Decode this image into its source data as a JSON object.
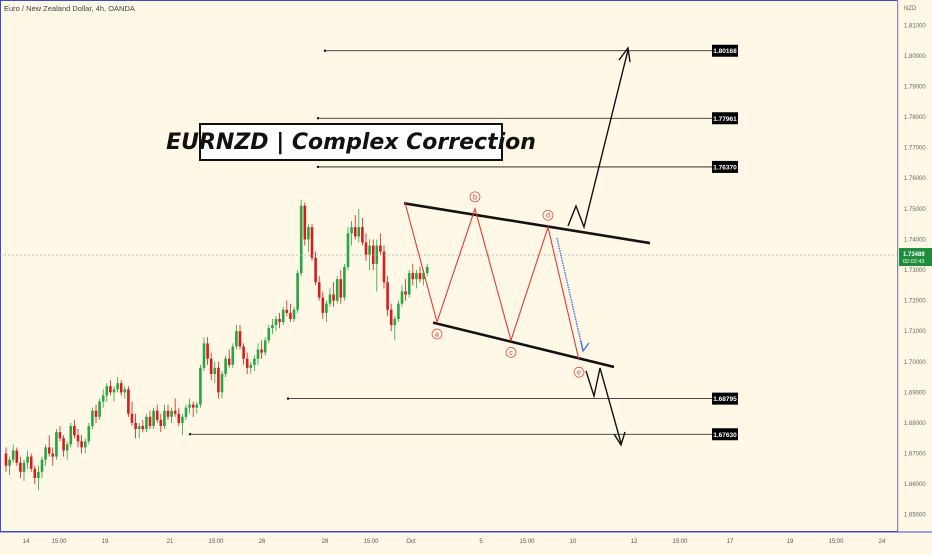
{
  "header": {
    "symbol_line": "Euro / New Zealand Dollar, 4h, OANDA"
  },
  "title_box": {
    "text": "EURNZD | Complex Correction"
  },
  "colors": {
    "background": "#FFF8E7",
    "bull": "#26A541",
    "bear": "#D81B1B",
    "wave": "#E53935",
    "projection_blue": "#3D6FE8",
    "line": "#111111"
  },
  "chart_data": {
    "type": "candlestick",
    "title": "EURNZD | Complex Correction",
    "symbol": "Euro / New Zealand Dollar, 4h, OANDA",
    "currency_label": "NZD",
    "ylim": [
      1.645,
      1.815
    ],
    "y_ticks": [
      "1.81000",
      "1.80000",
      "1.79000",
      "1.78000",
      "1.77000",
      "1.76000",
      "1.75000",
      "1.74000",
      "1.73000",
      "1.72000",
      "1.71000",
      "1.70000",
      "1.69000",
      "1.68000",
      "1.67000",
      "1.66000",
      "1.65000"
    ],
    "x_ticks": [
      "14",
      "15:00",
      "19",
      "21",
      "15:00",
      "26",
      "28",
      "15:00",
      "Oct",
      "5",
      "15:00",
      "10",
      "12",
      "15:00",
      "17",
      "19",
      "15:00",
      "24"
    ],
    "current_price": {
      "price": "1.73489",
      "countdown": "02:02:43"
    },
    "price_levels": [
      "1.80168",
      "1.77961",
      "1.76370",
      "1.68795",
      "1.67630"
    ],
    "wave_labels": [
      "a",
      "b",
      "c",
      "d",
      "e"
    ],
    "wave_points": [
      1.713,
      1.75,
      1.707,
      1.744,
      1.7005
    ],
    "channel": {
      "upper": [
        1.752,
        1.739
      ],
      "lower": [
        1.713,
        1.6985
      ]
    },
    "candles": [
      [
        1.67,
        1.672,
        1.664,
        1.666
      ],
      [
        1.666,
        1.669,
        1.663,
        1.668
      ],
      [
        1.668,
        1.673,
        1.667,
        1.671
      ],
      [
        1.671,
        1.672,
        1.666,
        1.667
      ],
      [
        1.667,
        1.669,
        1.662,
        1.664
      ],
      [
        1.664,
        1.668,
        1.661,
        1.667
      ],
      [
        1.667,
        1.671,
        1.665,
        1.669
      ],
      [
        1.669,
        1.67,
        1.664,
        1.665
      ],
      [
        1.665,
        1.666,
        1.66,
        1.662
      ],
      [
        1.662,
        1.666,
        1.658,
        1.664
      ],
      [
        1.664,
        1.669,
        1.662,
        1.668
      ],
      [
        1.668,
        1.673,
        1.666,
        1.672
      ],
      [
        1.672,
        1.676,
        1.669,
        1.67
      ],
      [
        1.67,
        1.672,
        1.666,
        1.669
      ],
      [
        1.669,
        1.678,
        1.668,
        1.677
      ],
      [
        1.677,
        1.679,
        1.674,
        1.675
      ],
      [
        1.675,
        1.676,
        1.669,
        1.671
      ],
      [
        1.671,
        1.674,
        1.668,
        1.673
      ],
      [
        1.673,
        1.68,
        1.672,
        1.679
      ],
      [
        1.679,
        1.681,
        1.675,
        1.676
      ],
      [
        1.676,
        1.678,
        1.672,
        1.674
      ],
      [
        1.674,
        1.676,
        1.67,
        1.672
      ],
      [
        1.672,
        1.675,
        1.67,
        1.674
      ],
      [
        1.674,
        1.68,
        1.673,
        1.679
      ],
      [
        1.679,
        1.685,
        1.678,
        1.684
      ],
      [
        1.684,
        1.686,
        1.68,
        1.682
      ],
      [
        1.682,
        1.688,
        1.681,
        1.687
      ],
      [
        1.687,
        1.691,
        1.685,
        1.689
      ],
      [
        1.689,
        1.693,
        1.687,
        1.692
      ],
      [
        1.692,
        1.694,
        1.689,
        1.69
      ],
      [
        1.69,
        1.692,
        1.687,
        1.691
      ],
      [
        1.691,
        1.695,
        1.69,
        1.693
      ],
      [
        1.693,
        1.694,
        1.689,
        1.69
      ],
      [
        1.69,
        1.692,
        1.688,
        1.691
      ],
      [
        1.691,
        1.692,
        1.682,
        1.683
      ],
      [
        1.683,
        1.687,
        1.679,
        1.68
      ],
      [
        1.68,
        1.683,
        1.675,
        1.678
      ],
      [
        1.678,
        1.68,
        1.675,
        1.679
      ],
      [
        1.679,
        1.681,
        1.677,
        1.678
      ],
      [
        1.678,
        1.683,
        1.677,
        1.682
      ],
      [
        1.682,
        1.684,
        1.678,
        1.679
      ],
      [
        1.679,
        1.685,
        1.678,
        1.684
      ],
      [
        1.684,
        1.686,
        1.68,
        1.681
      ],
      [
        1.681,
        1.683,
        1.677,
        1.679
      ],
      [
        1.679,
        1.686,
        1.678,
        1.684
      ],
      [
        1.684,
        1.686,
        1.681,
        1.682
      ],
      [
        1.682,
        1.685,
        1.68,
        1.684
      ],
      [
        1.684,
        1.688,
        1.682,
        1.683
      ],
      [
        1.683,
        1.685,
        1.679,
        1.68
      ],
      [
        1.68,
        1.683,
        1.676,
        1.682
      ],
      [
        1.682,
        1.686,
        1.681,
        1.685
      ],
      [
        1.685,
        1.688,
        1.683,
        1.686
      ],
      [
        1.686,
        1.687,
        1.682,
        1.685
      ],
      [
        1.685,
        1.687,
        1.683,
        1.686
      ],
      [
        1.686,
        1.699,
        1.685,
        1.698
      ],
      [
        1.698,
        1.708,
        1.697,
        1.706
      ],
      [
        1.706,
        1.708,
        1.699,
        1.701
      ],
      [
        1.701,
        1.703,
        1.694,
        1.696
      ],
      [
        1.696,
        1.7,
        1.693,
        1.698
      ],
      [
        1.698,
        1.7,
        1.688,
        1.69
      ],
      [
        1.69,
        1.697,
        1.688,
        1.696
      ],
      [
        1.696,
        1.702,
        1.695,
        1.701
      ],
      [
        1.701,
        1.704,
        1.698,
        1.699
      ],
      [
        1.699,
        1.706,
        1.698,
        1.705
      ],
      [
        1.705,
        1.712,
        1.704,
        1.71
      ],
      [
        1.71,
        1.712,
        1.704,
        1.705
      ],
      [
        1.705,
        1.706,
        1.699,
        1.701
      ],
      [
        1.701,
        1.703,
        1.696,
        1.698
      ],
      [
        1.698,
        1.7,
        1.696,
        1.699
      ],
      [
        1.699,
        1.702,
        1.697,
        1.701
      ],
      [
        1.701,
        1.706,
        1.699,
        1.704
      ],
      [
        1.704,
        1.707,
        1.701,
        1.703
      ],
      [
        1.703,
        1.708,
        1.702,
        1.707
      ],
      [
        1.707,
        1.712,
        1.706,
        1.711
      ],
      [
        1.711,
        1.714,
        1.709,
        1.712
      ],
      [
        1.712,
        1.715,
        1.71,
        1.714
      ],
      [
        1.714,
        1.716,
        1.711,
        1.713
      ],
      [
        1.713,
        1.718,
        1.712,
        1.717
      ],
      [
        1.717,
        1.72,
        1.715,
        1.716
      ],
      [
        1.716,
        1.719,
        1.713,
        1.714
      ],
      [
        1.714,
        1.718,
        1.713,
        1.717
      ],
      [
        1.717,
        1.73,
        1.716,
        1.729
      ],
      [
        1.729,
        1.753,
        1.728,
        1.751
      ],
      [
        1.751,
        1.752,
        1.738,
        1.74
      ],
      [
        1.74,
        1.745,
        1.736,
        1.744
      ],
      [
        1.744,
        1.745,
        1.733,
        1.734
      ],
      [
        1.734,
        1.736,
        1.725,
        1.726
      ],
      [
        1.726,
        1.728,
        1.72,
        1.721
      ],
      [
        1.721,
        1.723,
        1.714,
        1.716
      ],
      [
        1.716,
        1.72,
        1.713,
        1.719
      ],
      [
        1.719,
        1.724,
        1.718,
        1.722
      ],
      [
        1.722,
        1.726,
        1.718,
        1.72
      ],
      [
        1.72,
        1.728,
        1.719,
        1.727
      ],
      [
        1.727,
        1.73,
        1.719,
        1.721
      ],
      [
        1.721,
        1.732,
        1.72,
        1.731
      ],
      [
        1.731,
        1.744,
        1.73,
        1.742
      ],
      [
        1.742,
        1.746,
        1.738,
        1.744
      ],
      [
        1.744,
        1.748,
        1.74,
        1.741
      ],
      [
        1.741,
        1.75,
        1.739,
        1.744
      ],
      [
        1.744,
        1.747,
        1.738,
        1.739
      ],
      [
        1.739,
        1.742,
        1.733,
        1.735
      ],
      [
        1.735,
        1.74,
        1.73,
        1.738
      ],
      [
        1.738,
        1.74,
        1.73,
        1.732
      ],
      [
        1.732,
        1.74,
        1.723,
        1.738
      ],
      [
        1.738,
        1.742,
        1.735,
        1.736
      ],
      [
        1.736,
        1.738,
        1.724,
        1.726
      ],
      [
        1.726,
        1.728,
        1.715,
        1.717
      ],
      [
        1.717,
        1.719,
        1.71,
        1.712
      ],
      [
        1.712,
        1.715,
        1.707,
        1.714
      ],
      [
        1.714,
        1.72,
        1.713,
        1.719
      ],
      [
        1.719,
        1.725,
        1.718,
        1.723
      ],
      [
        1.723,
        1.727,
        1.72,
        1.722
      ],
      [
        1.722,
        1.73,
        1.721,
        1.729
      ],
      [
        1.729,
        1.732,
        1.725,
        1.727
      ],
      [
        1.727,
        1.73,
        1.724,
        1.729
      ],
      [
        1.729,
        1.731,
        1.726,
        1.727
      ],
      [
        1.727,
        1.73,
        1.725,
        1.729
      ],
      [
        1.729,
        1.732,
        1.728,
        1.731
      ]
    ]
  }
}
